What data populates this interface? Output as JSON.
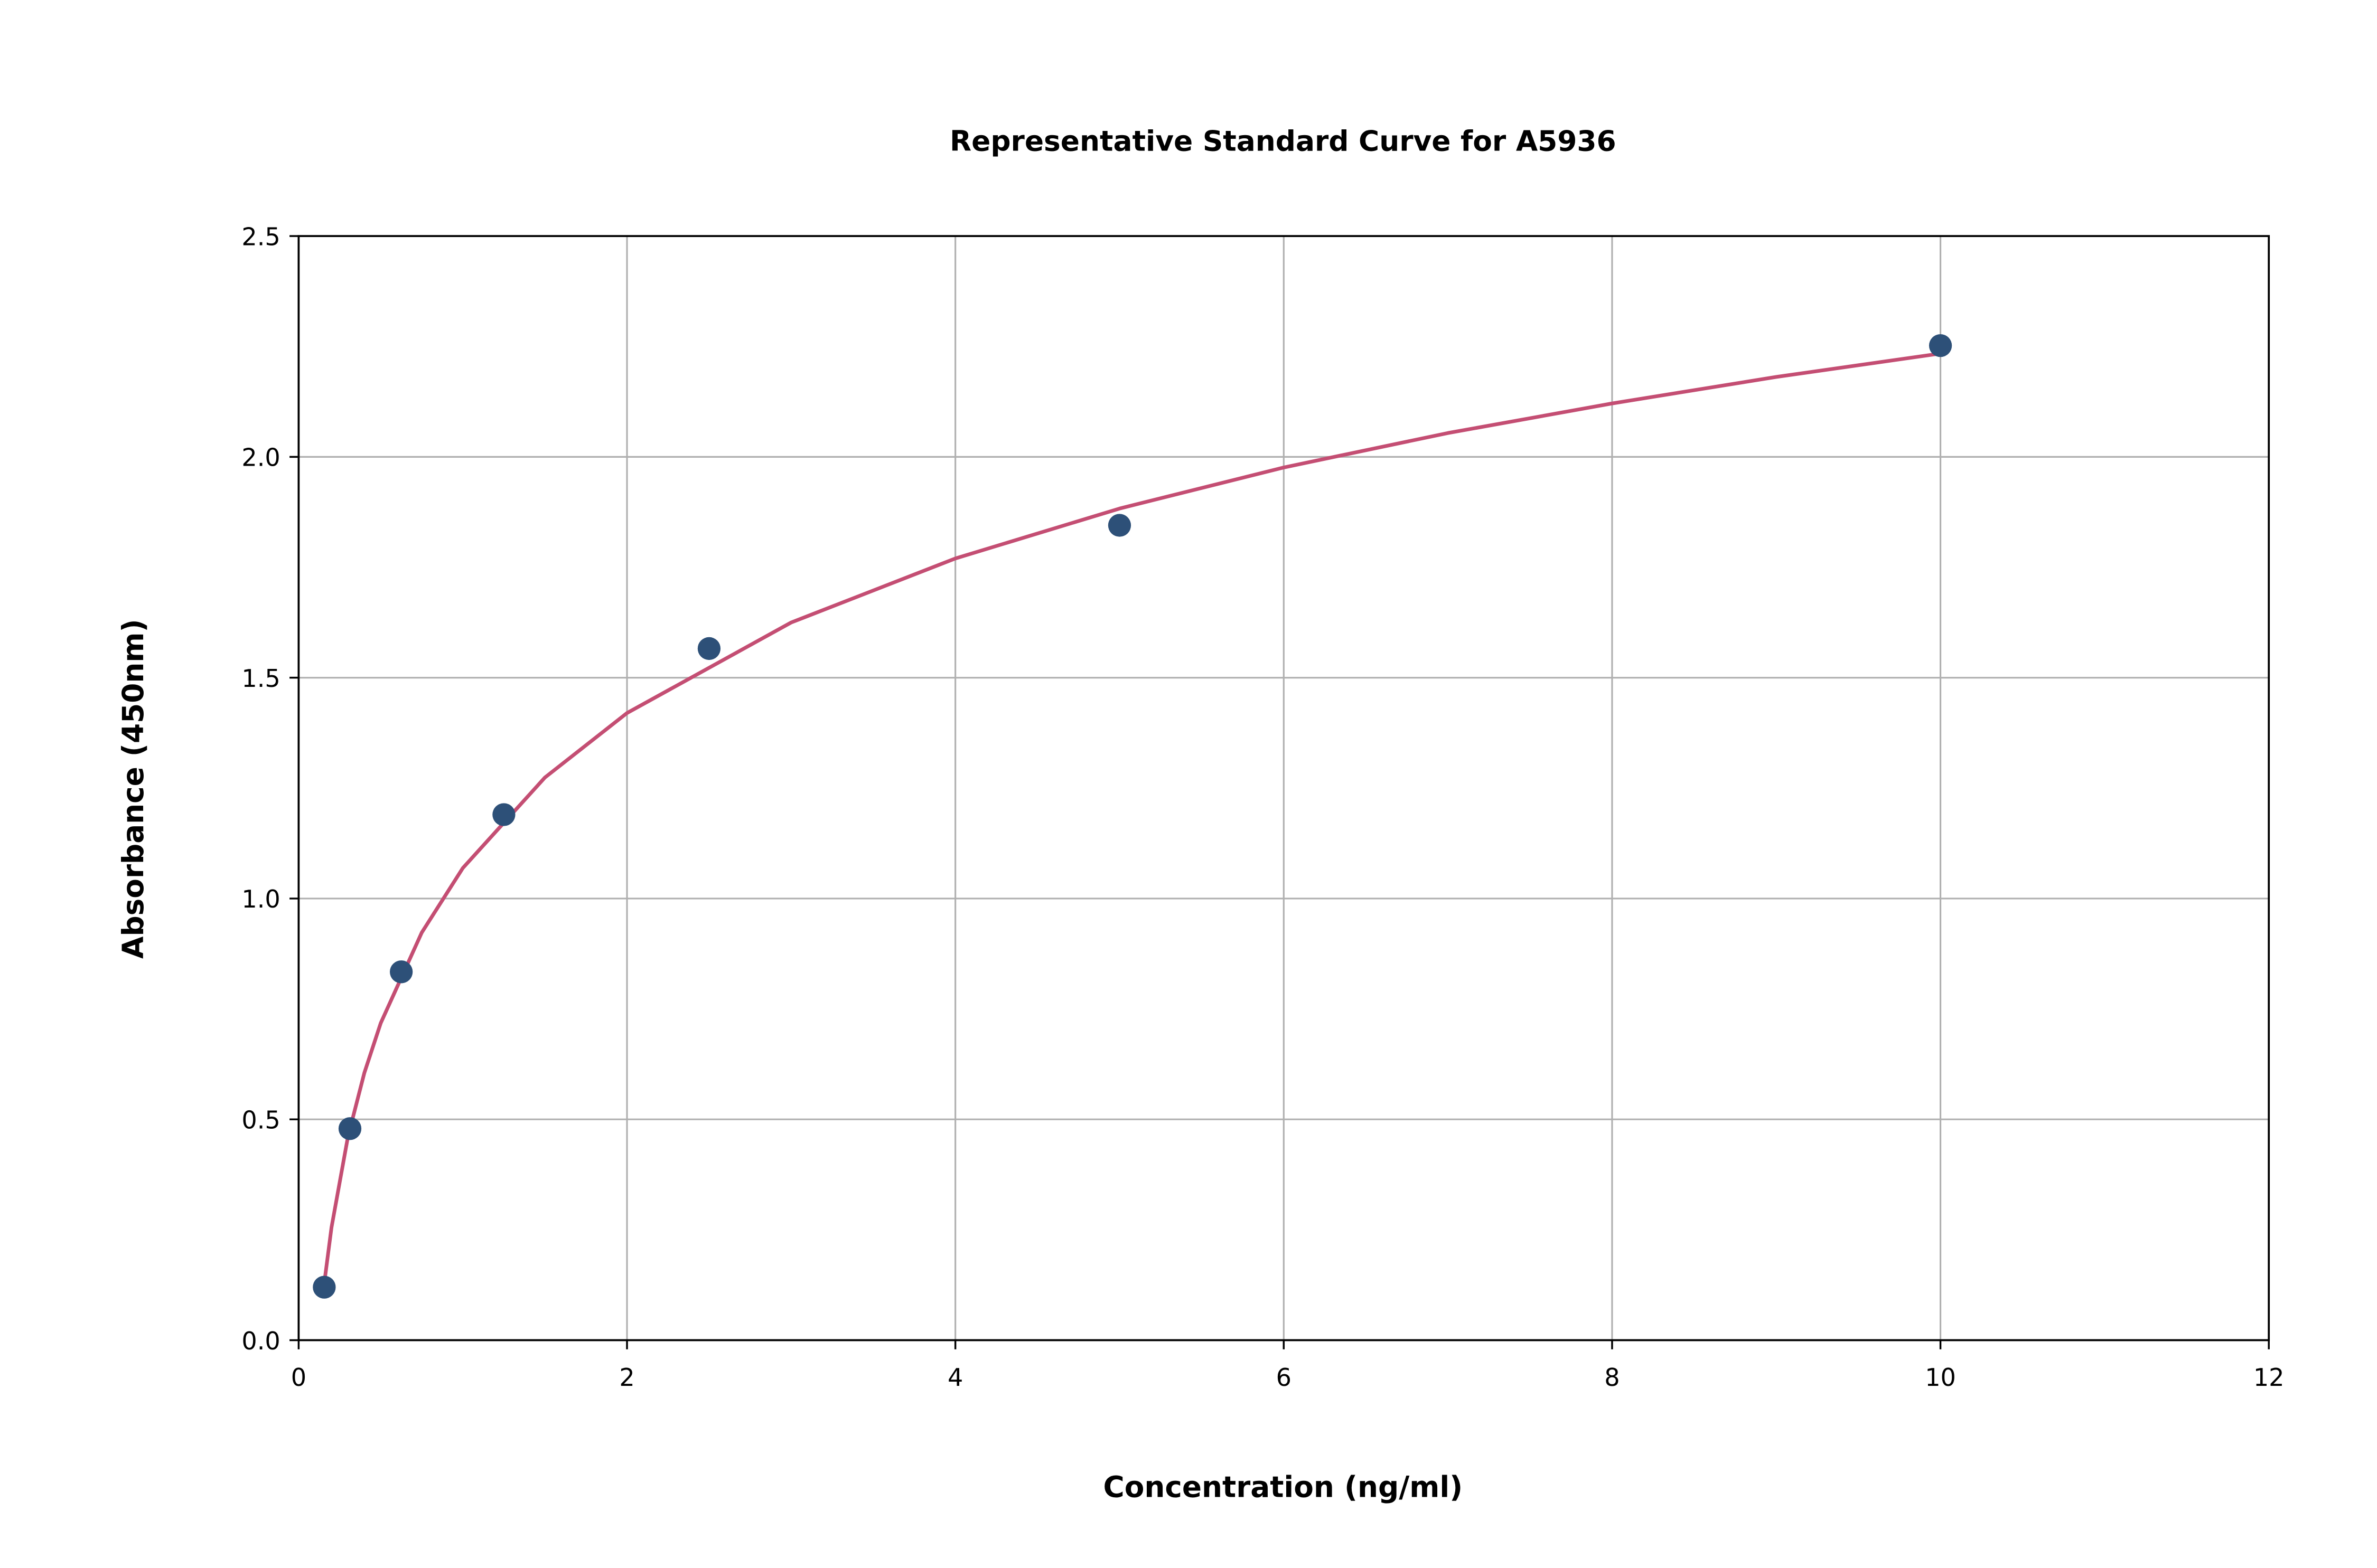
{
  "chart_data": {
    "type": "scatter",
    "title": "Representative Standard Curve for A5936",
    "xlabel": "Concentration (ng/ml)",
    "ylabel": "Absorbance (450nm)",
    "xlim": [
      0,
      12
    ],
    "ylim": [
      0,
      2.5
    ],
    "xticks": [
      "0",
      "2",
      "4",
      "6",
      "8",
      "10",
      "12"
    ],
    "yticks": [
      "0.0",
      "0.5",
      "1.0",
      "1.5",
      "2.0",
      "2.5"
    ],
    "grid": true,
    "points": {
      "x": [
        0.156,
        0.3125,
        0.625,
        1.25,
        2.5,
        5,
        10
      ],
      "y": [
        0.12,
        0.479,
        0.834,
        1.19,
        1.566,
        1.845,
        2.252
      ],
      "color": "#2d5078"
    },
    "fit_curve": {
      "x": [
        0.156,
        0.2,
        0.3,
        0.4,
        0.5,
        0.75,
        1,
        1.5,
        2,
        3,
        4,
        5,
        6,
        7,
        8,
        9,
        10
      ],
      "y": [
        0.129,
        0.255,
        0.46,
        0.605,
        0.718,
        0.923,
        1.069,
        1.274,
        1.42,
        1.625,
        1.77,
        1.883,
        1.976,
        2.054,
        2.121,
        2.181,
        2.234
      ],
      "color": "#c44e73"
    }
  }
}
